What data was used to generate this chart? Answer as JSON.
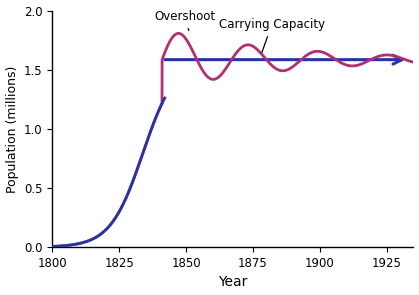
{
  "xlabel": "Year",
  "ylabel": "Population (millions)",
  "xlim": [
    1800,
    1935
  ],
  "ylim": [
    0,
    2.0
  ],
  "xticks": [
    1800,
    1825,
    1850,
    1875,
    1900,
    1925
  ],
  "yticks": [
    0.0,
    0.5,
    1.0,
    1.5,
    2.0
  ],
  "carrying_capacity": 1.585,
  "population_color": "#b03070",
  "carrying_line_color": "#2535a8",
  "background_color": "#ffffff",
  "overshoot_label": "Overshoot",
  "carrying_label": "Carrying Capacity",
  "logistic_r": 0.165,
  "logistic_K": 1.585,
  "logistic_N0": 0.006,
  "logistic_start": 1800,
  "oscillation_start_year": 1841,
  "oscillation_amplitude_0": 0.255,
  "oscillation_decay_rate": 0.022,
  "oscillation_period": 26
}
